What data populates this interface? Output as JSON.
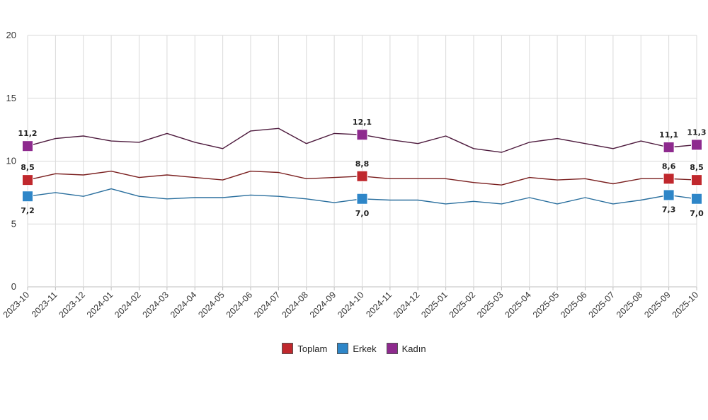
{
  "chart_data": {
    "type": "line",
    "title": "",
    "xlabel": "",
    "ylabel": "",
    "ylim": [
      0,
      20
    ],
    "yticks": [
      0,
      5,
      10,
      15,
      20
    ],
    "grid": true,
    "legend_position": "bottom-center",
    "x": [
      "2023-10",
      "2023-11",
      "2023-12",
      "2024-01",
      "2024-02",
      "2024-03",
      "2024-04",
      "2024-05",
      "2024-06",
      "2024-07",
      "2024-08",
      "2024-09",
      "2024-10",
      "2024-11",
      "2024-12",
      "2025-01",
      "2025-02",
      "2025-03",
      "2025-04",
      "2025-05",
      "2025-06",
      "2025-07",
      "2025-08",
      "2025-09",
      "2025-10"
    ],
    "series": [
      {
        "name": "Toplam",
        "color": "#c0282d",
        "line_color": "#7a1f1f",
        "values": [
          8.5,
          9.0,
          8.9,
          9.2,
          8.7,
          8.9,
          8.7,
          8.5,
          9.2,
          9.1,
          8.6,
          8.7,
          8.8,
          8.6,
          8.6,
          8.6,
          8.3,
          8.1,
          8.7,
          8.5,
          8.6,
          8.2,
          8.6,
          8.6,
          8.5
        ],
        "labels": {
          "0": "8,5",
          "12": "8,8",
          "23": "8,6",
          "24": "8,5"
        },
        "label_pos": "above"
      },
      {
        "name": "Erkek",
        "color": "#2e86c8",
        "line_color": "#2a6f9e",
        "values": [
          7.2,
          7.5,
          7.2,
          7.8,
          7.2,
          7.0,
          7.1,
          7.1,
          7.3,
          7.2,
          7.0,
          6.7,
          7.0,
          6.9,
          6.9,
          6.6,
          6.8,
          6.6,
          7.1,
          6.6,
          7.1,
          6.6,
          6.9,
          7.3,
          7.0
        ],
        "labels": {
          "0": "7,2",
          "12": "7,0",
          "23": "7,3",
          "24": "7,0"
        },
        "label_pos": "below"
      },
      {
        "name": "Kadın",
        "color": "#8e2a8e",
        "line_color": "#4d1a3d",
        "values": [
          11.2,
          11.8,
          12.0,
          11.6,
          11.5,
          12.2,
          11.5,
          11.0,
          12.4,
          12.6,
          11.4,
          12.2,
          12.1,
          11.7,
          11.4,
          12.0,
          11.0,
          10.7,
          11.5,
          11.8,
          11.4,
          11.0,
          11.6,
          11.1,
          11.3
        ],
        "labels": {
          "0": "11,2",
          "12": "12,1",
          "23": "11,1",
          "24": "11,3"
        },
        "label_pos": "above"
      }
    ]
  },
  "legend": [
    {
      "label": "Toplam",
      "color": "#c0282d"
    },
    {
      "label": "Erkek",
      "color": "#2e86c8"
    },
    {
      "label": "Kadın",
      "color": "#8e2a8e"
    }
  ]
}
